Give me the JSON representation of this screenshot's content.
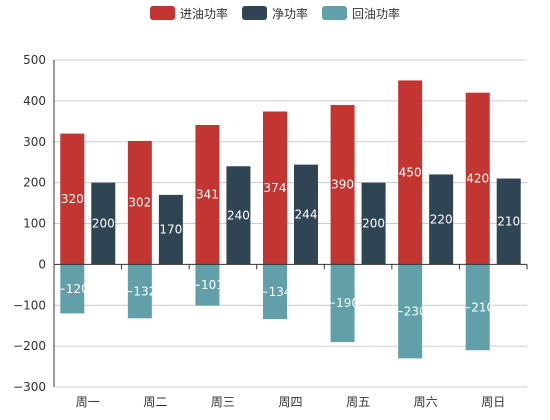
{
  "chart_data": {
    "type": "bar",
    "categories": [
      "周一",
      "周二",
      "周三",
      "周四",
      "周五",
      "周六",
      "周日"
    ],
    "series": [
      {
        "name": "进油功率",
        "color": "#c23531",
        "values": [
          320,
          302,
          341,
          374,
          390,
          450,
          420
        ],
        "stack": null
      },
      {
        "name": "净功率",
        "color": "#2f4554",
        "values": [
          200,
          170,
          240,
          244,
          200,
          220,
          210
        ],
        "stack": null
      },
      {
        "name": "回油功率",
        "color": "#61a0a8",
        "values": [
          -120,
          -132,
          -101,
          -134,
          -190,
          -230,
          -210
        ],
        "stack": "income"
      }
    ],
    "ylim": [
      -300,
      500
    ],
    "yticks": [
      -300,
      -200,
      -100,
      0,
      100,
      200,
      300,
      400,
      500
    ],
    "grid": true,
    "legend_position": "top-center",
    "axis_color": "#333333",
    "grid_color": "#cccccc"
  }
}
